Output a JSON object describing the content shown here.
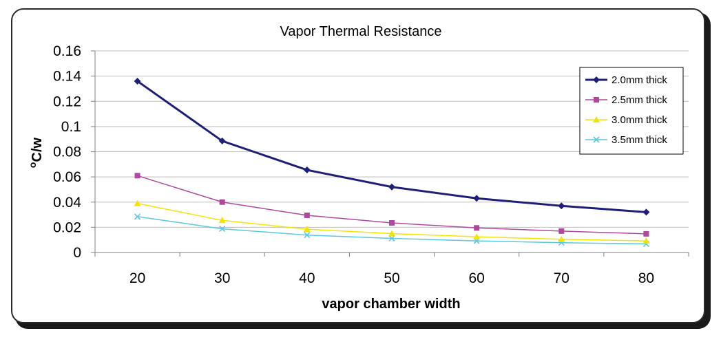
{
  "chart_data": {
    "type": "line",
    "title": "Vapor Thermal Resistance",
    "xlabel": "vapor chamber width",
    "ylabel": "oC/w",
    "categories": [
      "20",
      "30",
      "40",
      "50",
      "60",
      "70",
      "80"
    ],
    "y_ticks": [
      "0",
      "0.02",
      "0.04",
      "0.06",
      "0.08",
      "0.1",
      "0.12",
      "0.14",
      "0.16"
    ],
    "ylim": [
      0,
      0.16
    ],
    "grid": true,
    "legend_position": "top-right",
    "series": [
      {
        "name": "2.0mm thick",
        "color": "#1F1F7A",
        "marker": "diamond",
        "values": [
          0.136,
          0.0885,
          0.0655,
          0.052,
          0.043,
          0.037,
          0.032
        ]
      },
      {
        "name": "2.5mm thick",
        "color": "#B0489E",
        "marker": "square",
        "values": [
          0.061,
          0.04,
          0.0295,
          0.0235,
          0.0195,
          0.017,
          0.0148
        ]
      },
      {
        "name": "3.0mm thick",
        "color": "#F2E600",
        "marker": "triangle",
        "values": [
          0.039,
          0.0255,
          0.0185,
          0.015,
          0.0125,
          0.0105,
          0.0092
        ]
      },
      {
        "name": "3.5mm thick",
        "color": "#5AC8E0",
        "marker": "x",
        "values": [
          0.0285,
          0.0188,
          0.0138,
          0.0112,
          0.0092,
          0.0078,
          0.0068
        ]
      }
    ]
  }
}
